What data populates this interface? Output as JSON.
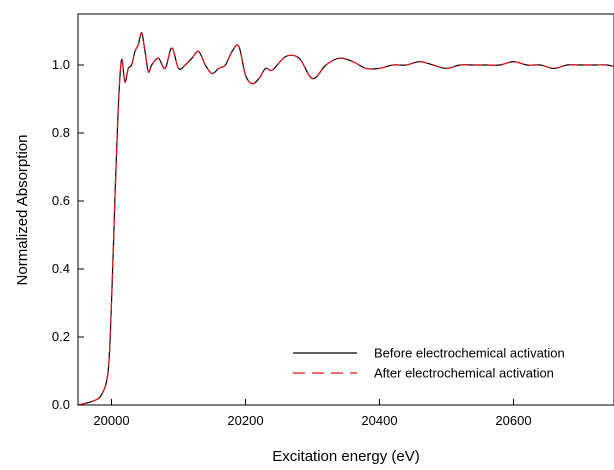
{
  "chart_data": {
    "type": "line",
    "title": "",
    "xlabel": "Excitation energy (eV)",
    "ylabel": "Normalized Absorption",
    "xlim": [
      19950,
      20750
    ],
    "ylim": [
      0.0,
      1.15
    ],
    "x_ticks": [
      20000,
      20200,
      20400,
      20600
    ],
    "y_ticks": [
      0.0,
      0.2,
      0.4,
      0.6,
      0.8,
      1.0
    ],
    "grid": false,
    "legend_position": "bottom-right",
    "series": [
      {
        "name": "Before electrochemical activation",
        "color": "#000000",
        "style": "solid",
        "x": [
          19950,
          19970,
          19985,
          19995,
          20000,
          20005,
          20010,
          20015,
          20020,
          20025,
          20030,
          20035,
          20040,
          20045,
          20050,
          20055,
          20060,
          20070,
          20080,
          20090,
          20100,
          20110,
          20120,
          20130,
          20140,
          20150,
          20160,
          20170,
          20180,
          20190,
          20200,
          20210,
          20220,
          20230,
          20240,
          20260,
          20280,
          20300,
          20320,
          20340,
          20360,
          20380,
          20400,
          20420,
          20440,
          20460,
          20480,
          20500,
          20520,
          20540,
          20560,
          20580,
          20600,
          20620,
          20640,
          20660,
          20680,
          20700,
          20720,
          20740,
          20750
        ],
        "y": [
          0.0,
          0.01,
          0.03,
          0.1,
          0.3,
          0.6,
          0.87,
          1.015,
          0.95,
          0.99,
          1.0,
          1.04,
          1.06,
          1.095,
          1.04,
          0.98,
          1.0,
          1.02,
          0.99,
          1.05,
          0.99,
          1.0,
          1.02,
          1.04,
          1.0,
          0.975,
          0.99,
          1.0,
          1.04,
          1.055,
          0.97,
          0.945,
          0.96,
          0.99,
          0.985,
          1.025,
          1.02,
          0.96,
          1.0,
          1.02,
          1.01,
          0.99,
          0.99,
          1.0,
          1.0,
          1.01,
          1.0,
          0.99,
          1.0,
          1.0,
          1.0,
          1.0,
          1.01,
          1.0,
          1.0,
          0.99,
          1.0,
          1.0,
          1.0,
          1.0,
          0.995
        ]
      },
      {
        "name": "After electrochemical activation",
        "color": "#e8141b",
        "style": "dashed",
        "x": [
          19950,
          19970,
          19985,
          19995,
          20000,
          20005,
          20010,
          20015,
          20020,
          20025,
          20030,
          20035,
          20040,
          20045,
          20050,
          20055,
          20060,
          20070,
          20080,
          20090,
          20100,
          20110,
          20120,
          20130,
          20140,
          20150,
          20160,
          20170,
          20180,
          20190,
          20200,
          20210,
          20220,
          20230,
          20240,
          20260,
          20280,
          20300,
          20320,
          20340,
          20360,
          20380,
          20400,
          20420,
          20440,
          20460,
          20480,
          20500,
          20520,
          20540,
          20560,
          20580,
          20600,
          20620,
          20640,
          20660,
          20680,
          20700,
          20720,
          20740,
          20750
        ],
        "y": [
          0.0,
          0.01,
          0.03,
          0.1,
          0.3,
          0.6,
          0.87,
          1.015,
          0.95,
          0.99,
          1.0,
          1.04,
          1.06,
          1.095,
          1.04,
          0.98,
          1.0,
          1.02,
          0.99,
          1.05,
          0.99,
          1.0,
          1.02,
          1.04,
          1.0,
          0.975,
          0.99,
          1.0,
          1.04,
          1.055,
          0.97,
          0.945,
          0.96,
          0.99,
          0.985,
          1.025,
          1.02,
          0.96,
          1.0,
          1.02,
          1.01,
          0.99,
          0.99,
          1.0,
          1.0,
          1.01,
          1.0,
          0.99,
          1.0,
          1.0,
          1.0,
          1.0,
          1.01,
          1.0,
          1.0,
          0.99,
          1.0,
          1.0,
          1.0,
          1.0,
          0.995
        ]
      }
    ]
  }
}
